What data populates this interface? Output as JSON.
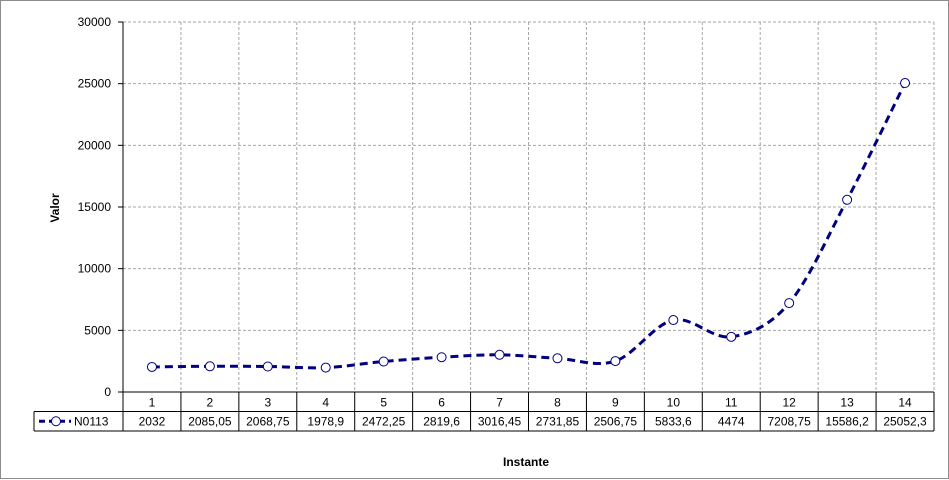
{
  "chart_data": {
    "type": "line",
    "xlabel": "Instante",
    "ylabel": "Valor",
    "ylim": [
      0,
      30000
    ],
    "y_ticks": [
      "0",
      "5000",
      "10000",
      "15000",
      "20000",
      "25000",
      "30000"
    ],
    "grid": true,
    "legend_placement": "data-table-left",
    "categories": [
      "1",
      "2",
      "3",
      "4",
      "5",
      "6",
      "7",
      "8",
      "9",
      "10",
      "11",
      "12",
      "13",
      "14"
    ],
    "series": [
      {
        "name": "N0113",
        "color": "#000080",
        "marker": "circle-open",
        "line_style": "dashed",
        "values": [
          2032,
          2085.05,
          2068.75,
          1978.9,
          2472.25,
          2819.6,
          3016.45,
          2731.85,
          2506.75,
          5833.6,
          4474,
          7208.75,
          15586.2,
          25052.3
        ],
        "value_labels": [
          "2032",
          "2085,05",
          "2068,75",
          "1978,9",
          "2472,25",
          "2819,6",
          "3016,45",
          "2731,85",
          "2506,75",
          "5833,6",
          "4474",
          "7208,75",
          "15586,2",
          "25052,3"
        ]
      }
    ]
  }
}
